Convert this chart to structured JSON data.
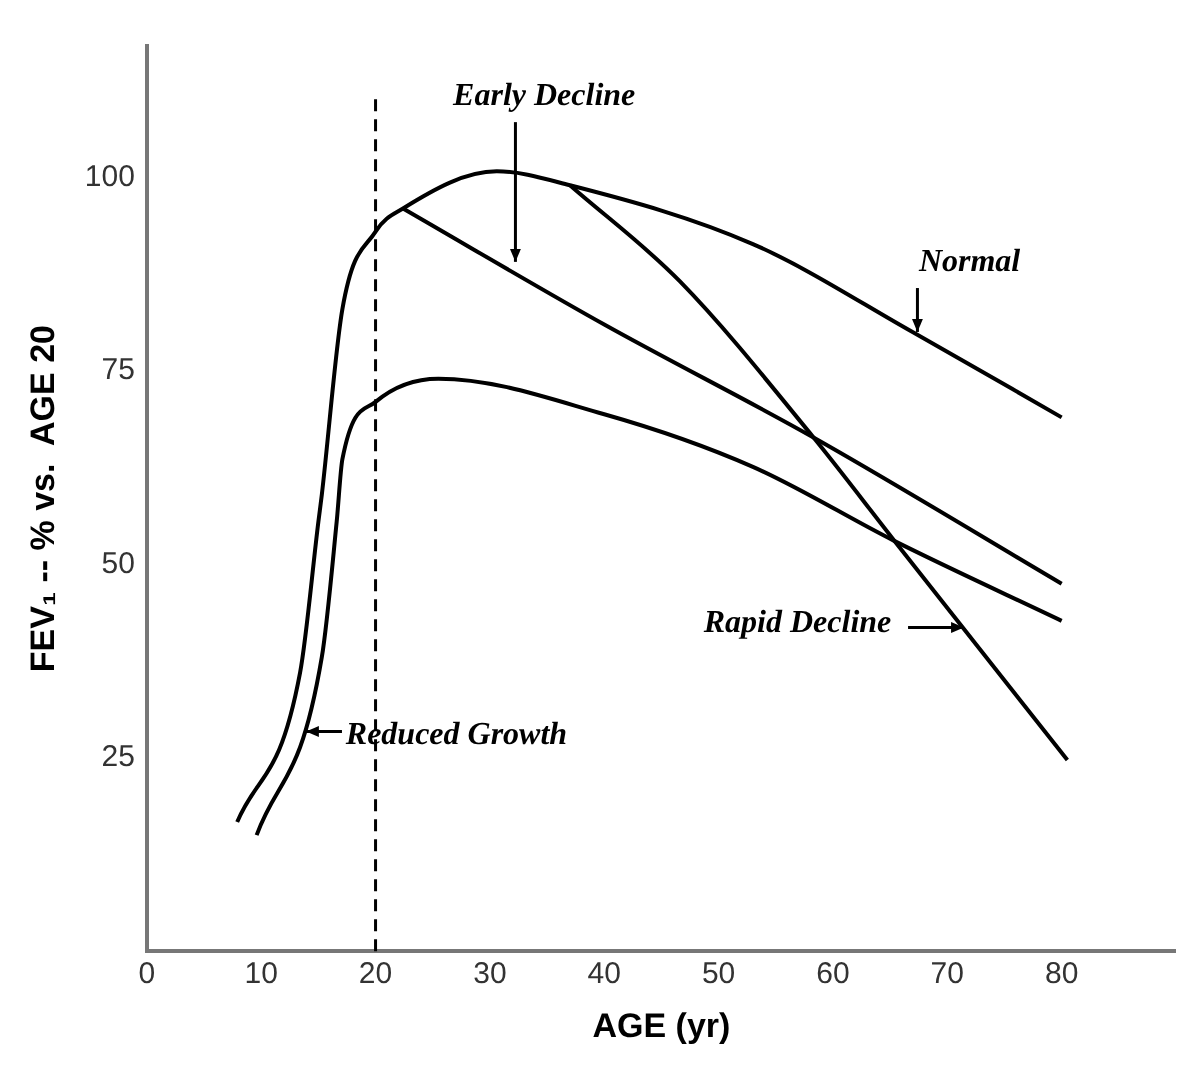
{
  "chart_data": {
    "type": "line",
    "xlabel": "AGE (yr)",
    "ylabel": "FEV₁ -- % vs.  AGE 20",
    "xlim": [
      0,
      90
    ],
    "xticks": [
      0,
      10,
      20,
      30,
      40,
      50,
      60,
      70,
      80
    ],
    "ylim": [
      0,
      117
    ],
    "yticks": [
      25,
      50,
      75,
      100
    ],
    "grid": false,
    "legend": false,
    "marker": "none",
    "line_style": "solid",
    "series": [
      {
        "color": "#000000",
        "x": [
          7.9,
          13.4,
          15,
          15.3,
          17.1,
          20,
          22.4,
          30.6,
          37,
          53,
          67,
          80
        ],
        "values": [
          16.7,
          36,
          55.5,
          59,
          83,
          93,
          96,
          100.8,
          99,
          91.4,
          80,
          69
        ]
      },
      {
        "color": "#000000",
        "x": [
          22.4,
          40,
          58.3,
          80
        ],
        "values": [
          96,
          81,
          66.4,
          47.5
        ]
      },
      {
        "color": "#000000",
        "x": [
          37,
          46.6,
          58.3,
          65.4,
          80.5
        ],
        "values": [
          99,
          86.6,
          66.4,
          53,
          24.7
        ]
      },
      {
        "color": "#000000",
        "x": [
          9.6,
          15.3,
          16.6,
          17.1,
          20,
          25.5,
          40,
          53,
          65.4,
          80
        ],
        "values": [
          15,
          38,
          55.5,
          63.6,
          71,
          74,
          69.4,
          62.6,
          53,
          42.7
        ]
      }
    ],
    "ref_lines": [
      {
        "axis": "x",
        "value": 20,
        "line_style": "dashed",
        "color": "#000000"
      }
    ],
    "annotations": [
      {
        "text": "Early Decline",
        "x": 32.3,
        "y": 89
      },
      {
        "text": "Normal",
        "x": 67.4,
        "y": 80
      },
      {
        "text": "Rapid Decline",
        "x": 71.4,
        "y": 41.8
      },
      {
        "text": "Reduced Growth",
        "x": 13.9,
        "y": 28.4
      }
    ]
  }
}
